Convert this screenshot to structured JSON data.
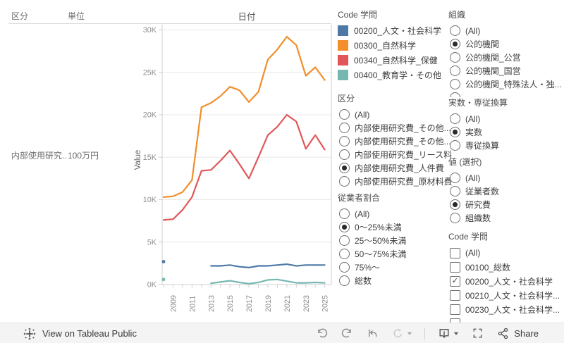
{
  "table": {
    "header_kubun": "区分",
    "header_tani": "単位",
    "row_label": "内部使用研究..",
    "row_unit": "100万円"
  },
  "chart": {
    "title": "日付",
    "y_axis_label": "Value",
    "y_ticks": [
      "0K",
      "5K",
      "10K",
      "15K",
      "20K",
      "25K",
      "30K"
    ],
    "x_tick_labels": [
      "2009",
      "2011",
      "2013",
      "2015",
      "2017",
      "2019",
      "2021",
      "2023",
      "2025"
    ]
  },
  "chart_data": {
    "type": "line",
    "title": "日付",
    "xlabel": "日付",
    "ylabel": "Value",
    "unit": "thousand (100万円)",
    "ylim_k": [
      0,
      30
    ],
    "grid": true,
    "legend_position": "right",
    "x": [
      2008,
      2009,
      2010,
      2011,
      2012,
      2013,
      2014,
      2015,
      2016,
      2017,
      2018,
      2019,
      2020,
      2021,
      2022,
      2023,
      2024,
      2025
    ],
    "series": [
      {
        "name": "00200_人文・社会科学",
        "color": "#4e79a7",
        "values_k": [
          2.7,
          null,
          null,
          null,
          null,
          2.2,
          2.2,
          2.3,
          2.1,
          2.0,
          2.2,
          2.2,
          2.3,
          2.4,
          2.2,
          2.3,
          2.3,
          2.3
        ]
      },
      {
        "name": "00300_自然科学",
        "color": "#f28e2b",
        "values_k": [
          10.3,
          10.4,
          10.9,
          12.3,
          20.9,
          21.4,
          22.2,
          23.3,
          22.9,
          21.5,
          22.7,
          26.5,
          27.7,
          29.2,
          28.2,
          24.6,
          25.6,
          24.1
        ]
      },
      {
        "name": "00340_自然科学_保健",
        "color": "#e15759",
        "values_k": [
          7.6,
          7.7,
          8.8,
          10.3,
          13.4,
          13.5,
          14.6,
          15.8,
          14.2,
          12.5,
          15.0,
          17.6,
          18.6,
          20.0,
          19.2,
          16.0,
          17.6,
          15.9
        ]
      },
      {
        "name": "00400_教育学・その他",
        "color": "#76b7b2",
        "values_k": [
          0.6,
          null,
          null,
          null,
          null,
          0.15,
          0.3,
          0.45,
          0.25,
          0.1,
          0.25,
          0.55,
          0.6,
          0.4,
          0.2,
          0.2,
          0.25,
          0.2
        ]
      }
    ]
  },
  "legend": {
    "title": "Code 学問",
    "items": [
      {
        "label": "00200_人文・社会科学",
        "color": "#4e79a7"
      },
      {
        "label": "00300_自然科学",
        "color": "#f28e2b"
      },
      {
        "label": "00340_自然科学_保健",
        "color": "#e15759"
      },
      {
        "label": "00400_教育学・その他",
        "color": "#76b7b2"
      }
    ]
  },
  "filters": [
    {
      "id": "kubun",
      "title": "区分",
      "type": "radio",
      "partial_tail": false,
      "options": [
        {
          "label": "(All)",
          "selected": false
        },
        {
          "label": "内部使用研究費_その他...",
          "selected": false
        },
        {
          "label": "内部使用研究費_その他...",
          "selected": false
        },
        {
          "label": "内部使用研究費_リース料",
          "selected": false
        },
        {
          "label": "内部使用研究費_人件費",
          "selected": true
        },
        {
          "label": "内部使用研究費_原材料費",
          "selected": false
        }
      ]
    },
    {
      "id": "employee_ratio",
      "title": "従業者割合",
      "type": "radio",
      "partial_tail": false,
      "options": [
        {
          "label": "(All)",
          "selected": false
        },
        {
          "label": "0～25%未満",
          "selected": true
        },
        {
          "label": "25～50%未満",
          "selected": false
        },
        {
          "label": "50～75%未満",
          "selected": false
        },
        {
          "label": "75%～",
          "selected": false
        },
        {
          "label": "総数",
          "selected": false
        }
      ]
    },
    {
      "id": "organization",
      "title": "組織",
      "type": "radio",
      "partial_tail": true,
      "options": [
        {
          "label": "(All)",
          "selected": false
        },
        {
          "label": "公的機関",
          "selected": true
        },
        {
          "label": "公的機関_公営",
          "selected": false
        },
        {
          "label": "公的機関_国営",
          "selected": false
        },
        {
          "label": "公的機関_特殊法人・独...",
          "selected": false
        }
      ]
    },
    {
      "id": "actual_or_fte",
      "title": "実数・専従換算",
      "type": "radio",
      "partial_tail": false,
      "options": [
        {
          "label": "(All)",
          "selected": false
        },
        {
          "label": "実数",
          "selected": true
        },
        {
          "label": "専従換算",
          "selected": false
        }
      ]
    },
    {
      "id": "value_select",
      "title": "値 (選択)",
      "type": "radio",
      "partial_tail": false,
      "options": [
        {
          "label": "(All)",
          "selected": false
        },
        {
          "label": "従業者数",
          "selected": false
        },
        {
          "label": "研究費",
          "selected": true
        },
        {
          "label": "組織数",
          "selected": false
        }
      ]
    },
    {
      "id": "code_gakumon",
      "title": "Code 学問",
      "type": "checkbox",
      "partial_tail": true,
      "options": [
        {
          "label": "(All)",
          "selected": false
        },
        {
          "label": "00100_総数",
          "selected": false
        },
        {
          "label": "00200_人文・社会科学",
          "selected": true
        },
        {
          "label": "00210_人文・社会科学...",
          "selected": false
        },
        {
          "label": "00230_人文・社会科学...",
          "selected": false
        }
      ]
    }
  ],
  "toolbar": {
    "view_label": "View on Tableau Public",
    "share_label": "Share",
    "icons": [
      "undo",
      "redo",
      "revert-all",
      "refresh-data",
      "download",
      "fullscreen",
      "share"
    ]
  }
}
